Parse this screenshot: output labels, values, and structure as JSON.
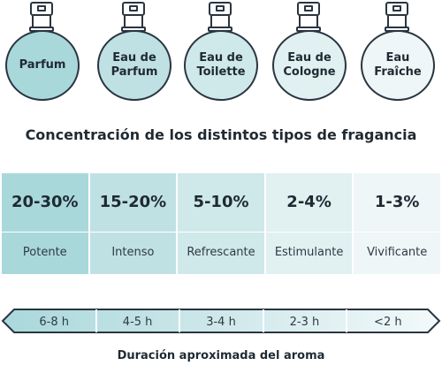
{
  "bottles": [
    {
      "label": "Parfum",
      "color": "#a9d8db"
    },
    {
      "label": "Eau de\nParfum",
      "color": "#bfe1e4"
    },
    {
      "label": "Eau de\nToilette",
      "color": "#cfe8ea"
    },
    {
      "label": "Eau de\nCologne",
      "color": "#e1f0f1"
    },
    {
      "label": "Eau\nFraîche",
      "color": "#eef6f7"
    }
  ],
  "title": "Concentración de los distintos tipos de fragancia",
  "concentrations": [
    {
      "percent": "20-30%",
      "description": "Potente",
      "color": "#a9d8db"
    },
    {
      "percent": "15-20%",
      "description": "Intenso",
      "color": "#bfe1e4"
    },
    {
      "percent": "5-10%",
      "description": "Refrescante",
      "color": "#cfe8ea"
    },
    {
      "percent": "2-4%",
      "description": "Estimulante",
      "color": "#e1f0f1"
    },
    {
      "percent": "1-3%",
      "description": "Vivificante",
      "color": "#eef6f7"
    }
  ],
  "durations": [
    "6-8 h",
    "4-5 h",
    "3-4 h",
    "2-3 h",
    "<2 h"
  ],
  "footer": "Duración aproximada del aroma"
}
